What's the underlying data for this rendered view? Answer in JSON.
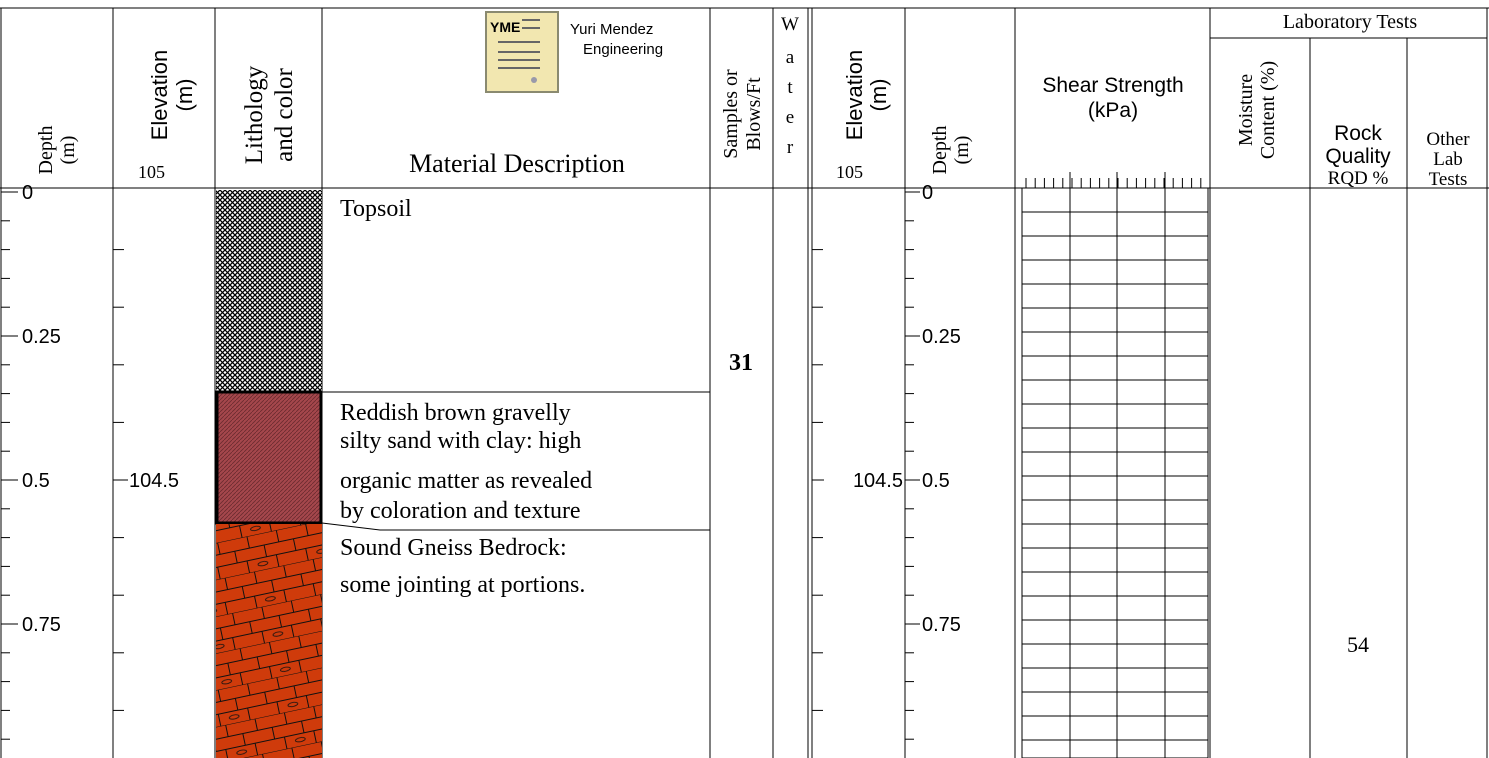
{
  "header": {
    "depth": [
      "Depth",
      "(m)"
    ],
    "elevation": {
      "label": [
        "Elevation",
        "(m)"
      ],
      "top": 105
    },
    "lithology": [
      "Lithology",
      "and color"
    ],
    "logo": {
      "mark": "YME",
      "company": [
        "Yuri Mendez",
        "Engineering"
      ]
    },
    "description": "Material Description",
    "samples": [
      "Samples or",
      "Blows/Ft"
    ],
    "water": [
      "W",
      "a",
      "t",
      "e",
      "r"
    ],
    "elevation_right": {
      "label": [
        "Elevation",
        "(m)"
      ],
      "top": 105
    },
    "depth_right": [
      "Depth",
      "(m)"
    ],
    "shear": [
      "Shear Strength",
      "(kPa)"
    ],
    "lab": "Laboratory Tests",
    "moisture": [
      "Moisture",
      "Content (%)"
    ],
    "rqd": [
      "Rock",
      "Quality",
      "RQD %"
    ],
    "other": [
      "Other",
      "Lab",
      "Tests"
    ]
  },
  "depth_ticks": [
    0,
    0.25,
    0.5,
    0.75
  ],
  "elevation_ticks": [
    104.5
  ],
  "layers": [
    {
      "description": [
        "Topsoil"
      ]
    },
    {
      "description": [
        "Reddish brown gravelly",
        "silty sand with clay: high",
        "organic matter as revealed",
        "by coloration and texture"
      ]
    },
    {
      "description": [
        "Sound Gneiss Bedrock:",
        "some jointing at portions."
      ]
    }
  ],
  "samples": [
    31
  ],
  "rqd": [
    54
  ]
}
